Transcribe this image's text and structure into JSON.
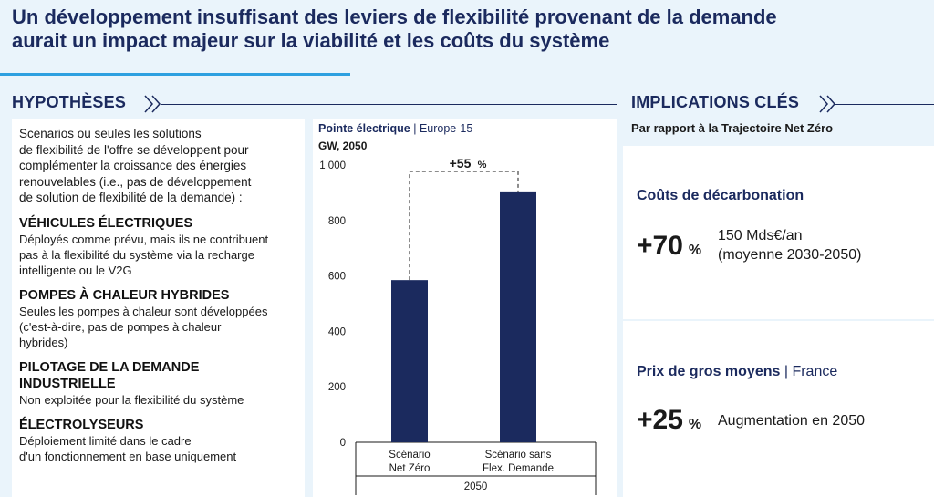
{
  "title": {
    "line1": "Un développement insuffisant des leviers de flexibilité provenant de la demande",
    "line2": "aurait un impact majeur sur la viabilité et les coûts du système"
  },
  "hypotheses": {
    "heading": "HYPOTHÈSES",
    "intro": [
      "Scenarios ou seules les solutions",
      "de flexibilité de l'offre se développent pour",
      "complémenter la croissance des énergies",
      "renouvelables (i.e., pas de développement",
      "de solution de flexibilité de la demande) :"
    ],
    "items": [
      {
        "title": [
          "VÉHICULES ÉLECTRIQUES"
        ],
        "desc": [
          "Déployés comme prévu, mais ils ne contribuent",
          "pas à la flexibilité du système via la recharge",
          "intelligente ou le V2G"
        ]
      },
      {
        "title": [
          "POMPES À CHALEUR HYBRIDES"
        ],
        "desc": [
          "Seules les pompes à chaleur sont développées",
          "(c'est-à-dire, pas de pompes à chaleur",
          "hybrides)"
        ]
      },
      {
        "title": [
          "PILOTAGE DE LA DEMANDE",
          "INDUSTRIELLE"
        ],
        "desc": [
          "Non exploitée pour la flexibilité du système"
        ]
      },
      {
        "title": [
          "ÉLECTROLYSEURS"
        ],
        "desc": [
          "Déploiement limité dans le cadre",
          "d'un fonctionnement en base uniquement"
        ]
      }
    ]
  },
  "chart_data": {
    "type": "bar",
    "title": "Pointe électrique",
    "subtitle": "Europe-15",
    "unit": "GW, 2050",
    "categories": [
      [
        "Scénario",
        "Net Zéro"
      ],
      [
        "Scénario sans",
        "Flex. Demande"
      ]
    ],
    "values": [
      585,
      905
    ],
    "ylim": [
      0,
      1000
    ],
    "yticks": [
      0,
      200,
      400,
      600,
      800,
      1000
    ],
    "ytick_labels": [
      "0",
      "200",
      "400",
      "600",
      "800",
      "1 000"
    ],
    "xlabel": "2050",
    "annotation": "+55",
    "annotation_unit": "%",
    "bar_color": "#1b2a5e"
  },
  "implications": {
    "heading": "IMPLICATIONS CLÉS",
    "subheading": "Par rapport à la Trajectoire Net Zéro",
    "cards": [
      {
        "title": "Coûts de décarbonation",
        "title_suffix": "",
        "big": "+70",
        "pct": "%",
        "text": [
          "150 Mds€/an",
          "(moyenne 2030-2050)"
        ]
      },
      {
        "title": "Prix de gros moyens",
        "title_suffix": "| France",
        "big": "+25",
        "pct": "%",
        "text": [
          "Augmentation en 2050"
        ]
      }
    ]
  },
  "colors": {
    "accent": "#2ea0e0",
    "navy": "#1b2a5e",
    "background": "#eaf4fb"
  }
}
